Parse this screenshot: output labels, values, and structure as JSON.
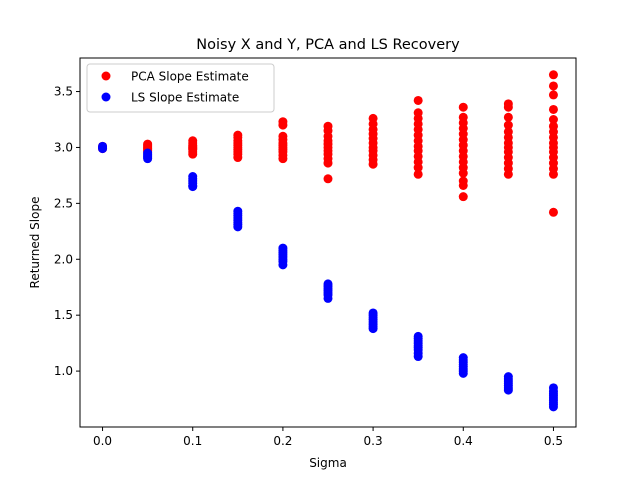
{
  "chart_data": {
    "type": "scatter",
    "title": "Noisy X and Y, PCA and LS Recovery",
    "xlabel": "Sigma",
    "ylabel": "Returned Slope",
    "xlim": [
      -0.025,
      0.525
    ],
    "ylim": [
      0.5,
      3.8
    ],
    "xticks": [
      0.0,
      0.1,
      0.2,
      0.3,
      0.4,
      0.5
    ],
    "xtick_labels": [
      "0.0",
      "0.1",
      "0.2",
      "0.3",
      "0.4",
      "0.5"
    ],
    "yticks": [
      1.0,
      1.5,
      2.0,
      2.5,
      3.0,
      3.5
    ],
    "ytick_labels": [
      "1.0",
      "1.5",
      "2.0",
      "2.5",
      "3.0",
      "3.5"
    ],
    "grid": false,
    "legend_position": "top-left",
    "series": [
      {
        "name": "PCA Slope Estimate",
        "color": "#ff0000",
        "points": [
          [
            0.0,
            3.0
          ],
          [
            0.0,
            3.01
          ],
          [
            0.0,
            2.99
          ],
          [
            0.05,
            3.03
          ],
          [
            0.05,
            3.02
          ],
          [
            0.05,
            3.01
          ],
          [
            0.05,
            3.0
          ],
          [
            0.05,
            2.99
          ],
          [
            0.05,
            2.98
          ],
          [
            0.05,
            2.97
          ],
          [
            0.05,
            2.96
          ],
          [
            0.1,
            3.06
          ],
          [
            0.1,
            3.04
          ],
          [
            0.1,
            3.02
          ],
          [
            0.1,
            3.01
          ],
          [
            0.1,
            3.0
          ],
          [
            0.1,
            2.99
          ],
          [
            0.1,
            2.98
          ],
          [
            0.1,
            2.96
          ],
          [
            0.1,
            2.94
          ],
          [
            0.15,
            3.11
          ],
          [
            0.15,
            3.09
          ],
          [
            0.15,
            3.06
          ],
          [
            0.15,
            3.04
          ],
          [
            0.15,
            3.02
          ],
          [
            0.15,
            3.0
          ],
          [
            0.15,
            2.98
          ],
          [
            0.15,
            2.96
          ],
          [
            0.15,
            2.94
          ],
          [
            0.15,
            2.91
          ],
          [
            0.2,
            3.23
          ],
          [
            0.2,
            3.2
          ],
          [
            0.2,
            3.1
          ],
          [
            0.2,
            3.07
          ],
          [
            0.2,
            3.04
          ],
          [
            0.2,
            3.02
          ],
          [
            0.2,
            3.0
          ],
          [
            0.2,
            2.98
          ],
          [
            0.2,
            2.96
          ],
          [
            0.2,
            2.93
          ],
          [
            0.2,
            2.9
          ],
          [
            0.25,
            3.19
          ],
          [
            0.25,
            3.15
          ],
          [
            0.25,
            3.1
          ],
          [
            0.25,
            3.06
          ],
          [
            0.25,
            3.03
          ],
          [
            0.25,
            3.0
          ],
          [
            0.25,
            2.97
          ],
          [
            0.25,
            2.94
          ],
          [
            0.25,
            2.9
          ],
          [
            0.25,
            2.86
          ],
          [
            0.25,
            2.72
          ],
          [
            0.3,
            3.26
          ],
          [
            0.3,
            3.21
          ],
          [
            0.3,
            3.16
          ],
          [
            0.3,
            3.12
          ],
          [
            0.3,
            3.08
          ],
          [
            0.3,
            3.04
          ],
          [
            0.3,
            3.0
          ],
          [
            0.3,
            2.97
          ],
          [
            0.3,
            2.93
          ],
          [
            0.3,
            2.89
          ],
          [
            0.3,
            2.85
          ],
          [
            0.35,
            3.42
          ],
          [
            0.35,
            3.31
          ],
          [
            0.35,
            3.26
          ],
          [
            0.35,
            3.21
          ],
          [
            0.35,
            3.16
          ],
          [
            0.35,
            3.11
          ],
          [
            0.35,
            3.06
          ],
          [
            0.35,
            3.01
          ],
          [
            0.35,
            2.97
          ],
          [
            0.35,
            2.92
          ],
          [
            0.35,
            2.87
          ],
          [
            0.35,
            2.82
          ],
          [
            0.35,
            2.76
          ],
          [
            0.4,
            3.36
          ],
          [
            0.4,
            3.27
          ],
          [
            0.4,
            3.22
          ],
          [
            0.4,
            3.17
          ],
          [
            0.4,
            3.12
          ],
          [
            0.4,
            3.07
          ],
          [
            0.4,
            3.02
          ],
          [
            0.4,
            2.97
          ],
          [
            0.4,
            2.92
          ],
          [
            0.4,
            2.87
          ],
          [
            0.4,
            2.82
          ],
          [
            0.4,
            2.77
          ],
          [
            0.4,
            2.7
          ],
          [
            0.4,
            2.66
          ],
          [
            0.4,
            2.56
          ],
          [
            0.45,
            3.39
          ],
          [
            0.45,
            3.36
          ],
          [
            0.45,
            3.27
          ],
          [
            0.45,
            3.2
          ],
          [
            0.45,
            3.14
          ],
          [
            0.45,
            3.09
          ],
          [
            0.45,
            3.04
          ],
          [
            0.45,
            3.0
          ],
          [
            0.45,
            2.96
          ],
          [
            0.45,
            2.91
          ],
          [
            0.45,
            2.86
          ],
          [
            0.45,
            2.81
          ],
          [
            0.45,
            2.76
          ],
          [
            0.5,
            3.65
          ],
          [
            0.5,
            3.55
          ],
          [
            0.5,
            3.47
          ],
          [
            0.5,
            3.34
          ],
          [
            0.5,
            3.25
          ],
          [
            0.5,
            3.19
          ],
          [
            0.5,
            3.14
          ],
          [
            0.5,
            3.09
          ],
          [
            0.5,
            3.04
          ],
          [
            0.5,
            3.0
          ],
          [
            0.5,
            2.96
          ],
          [
            0.5,
            2.91
          ],
          [
            0.5,
            2.86
          ],
          [
            0.5,
            2.81
          ],
          [
            0.5,
            2.76
          ],
          [
            0.5,
            2.42
          ]
        ]
      },
      {
        "name": "LS Slope Estimate",
        "color": "#0000ff",
        "points": [
          [
            0.0,
            3.0
          ],
          [
            0.0,
            3.01
          ],
          [
            0.0,
            2.99
          ],
          [
            0.05,
            2.95
          ],
          [
            0.05,
            2.94
          ],
          [
            0.05,
            2.93
          ],
          [
            0.05,
            2.92
          ],
          [
            0.05,
            2.91
          ],
          [
            0.05,
            2.9
          ],
          [
            0.1,
            2.74
          ],
          [
            0.1,
            2.72
          ],
          [
            0.1,
            2.7
          ],
          [
            0.1,
            2.68
          ],
          [
            0.1,
            2.66
          ],
          [
            0.1,
            2.65
          ],
          [
            0.15,
            2.43
          ],
          [
            0.15,
            2.41
          ],
          [
            0.15,
            2.39
          ],
          [
            0.15,
            2.37
          ],
          [
            0.15,
            2.35
          ],
          [
            0.15,
            2.33
          ],
          [
            0.15,
            2.31
          ],
          [
            0.15,
            2.29
          ],
          [
            0.2,
            2.1
          ],
          [
            0.2,
            2.08
          ],
          [
            0.2,
            2.06
          ],
          [
            0.2,
            2.04
          ],
          [
            0.2,
            2.02
          ],
          [
            0.2,
            2.0
          ],
          [
            0.2,
            1.98
          ],
          [
            0.2,
            1.95
          ],
          [
            0.25,
            1.78
          ],
          [
            0.25,
            1.76
          ],
          [
            0.25,
            1.74
          ],
          [
            0.25,
            1.72
          ],
          [
            0.25,
            1.7
          ],
          [
            0.25,
            1.68
          ],
          [
            0.25,
            1.65
          ],
          [
            0.3,
            1.52
          ],
          [
            0.3,
            1.5
          ],
          [
            0.3,
            1.48
          ],
          [
            0.3,
            1.46
          ],
          [
            0.3,
            1.44
          ],
          [
            0.3,
            1.42
          ],
          [
            0.3,
            1.4
          ],
          [
            0.3,
            1.38
          ],
          [
            0.35,
            1.31
          ],
          [
            0.35,
            1.29
          ],
          [
            0.35,
            1.27
          ],
          [
            0.35,
            1.25
          ],
          [
            0.35,
            1.23
          ],
          [
            0.35,
            1.21
          ],
          [
            0.35,
            1.19
          ],
          [
            0.35,
            1.16
          ],
          [
            0.35,
            1.13
          ],
          [
            0.4,
            1.12
          ],
          [
            0.4,
            1.1
          ],
          [
            0.4,
            1.08
          ],
          [
            0.4,
            1.06
          ],
          [
            0.4,
            1.04
          ],
          [
            0.4,
            1.02
          ],
          [
            0.4,
            1.0
          ],
          [
            0.4,
            0.98
          ],
          [
            0.45,
            0.95
          ],
          [
            0.45,
            0.93
          ],
          [
            0.45,
            0.91
          ],
          [
            0.45,
            0.89
          ],
          [
            0.45,
            0.87
          ],
          [
            0.45,
            0.85
          ],
          [
            0.45,
            0.83
          ],
          [
            0.5,
            0.85
          ],
          [
            0.5,
            0.82
          ],
          [
            0.5,
            0.8
          ],
          [
            0.5,
            0.78
          ],
          [
            0.5,
            0.76
          ],
          [
            0.5,
            0.74
          ],
          [
            0.5,
            0.72
          ],
          [
            0.5,
            0.7
          ],
          [
            0.5,
            0.68
          ]
        ]
      }
    ]
  }
}
